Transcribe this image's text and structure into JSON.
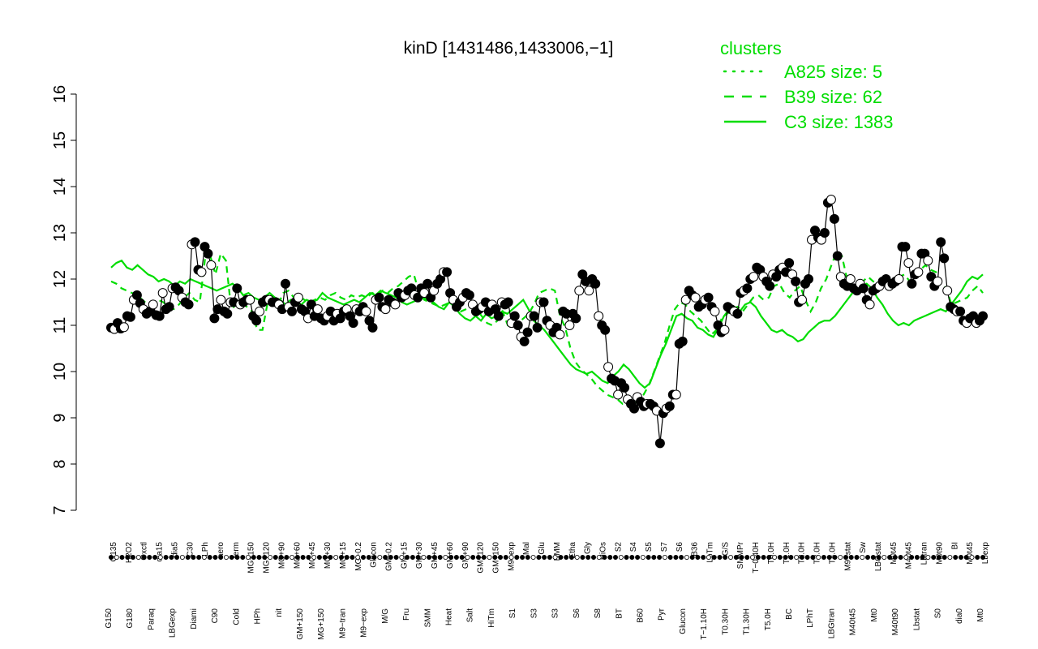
{
  "chart_data": {
    "type": "line",
    "title": "kinD [1431486,1433006,−1]",
    "xlabel": "",
    "ylabel": "",
    "ylim": [
      7,
      16
    ],
    "yticks": [
      7,
      8,
      9,
      10,
      11,
      12,
      13,
      14,
      15,
      16
    ],
    "grid": false,
    "legend_placement": "top-right",
    "legend": {
      "title": "clusters",
      "color": "#00dd00",
      "entries": [
        {
          "label": "A825 size: 5",
          "style": "dotted"
        },
        {
          "label": "B39 size: 62",
          "style": "dashed"
        },
        {
          "label": "C3 size: 1383",
          "style": "solid"
        }
      ]
    },
    "x_labels_top": [
      "G135",
      "H2O2",
      "Oxctl",
      "dia15",
      "dia5",
      "C30",
      "LPh",
      "aero",
      "ferm",
      "MG+150",
      "MG+120",
      "MG+90",
      "MG+60",
      "MG+45",
      "MG+30",
      "MG+15",
      "MG−0.2",
      "Glucon",
      "GM−0.2",
      "GM+15",
      "GM+30",
      "GM+45",
      "GM+60",
      "GM+90",
      "GM+120",
      "GM+150",
      "M9−exp",
      "Mal",
      "Glu",
      "BMM",
      "Etha",
      "Gly",
      "HiOs",
      "S2",
      "S4",
      "S5",
      "S7",
      "S6",
      "B36",
      "LoTm",
      "G/S",
      "SMMPr",
      "T−0.40H",
      "T0.0H",
      "T1.0H",
      "T2.0H",
      "T3.0H",
      "T4.0H",
      "M9−stat",
      "Sw",
      "LBGstat",
      "M0t45",
      "M40t45",
      "Lbtran",
      "M0t90",
      "BI",
      "M0t45",
      "Lbexp"
    ],
    "x_labels_bottom": [
      "G150",
      "G180",
      "Paraq",
      "LBGexp",
      "Diami",
      "C90",
      "Cold",
      "HPh",
      "nit",
      "GM+150",
      "MG+150",
      "M9−tran",
      "M9−exp",
      "M/G",
      "Fru",
      "SMM",
      "Heat",
      "Salt",
      "HiTm",
      "S1",
      "S3",
      "S3",
      "S6",
      "S8",
      "BT",
      "B60",
      "Pyr",
      "Glucon",
      "T−1.10H",
      "T0.30H",
      "T1.30H",
      "T5.0H",
      "BC",
      "LPhT",
      "LBGtran",
      "M40t45",
      "Mt0",
      "M40t90",
      "Lbstat",
      "S0",
      "dia0",
      "Mt0"
    ],
    "series": [
      {
        "name": "",
        "style": "solid",
        "color": "#000000",
        "values": [
          10.95,
          10.92,
          11.05,
          10.93,
          10.96,
          11.2,
          11.18,
          11.55,
          11.65,
          11.48,
          11.35,
          11.25,
          11.3,
          11.45,
          11.22,
          11.2,
          11.7,
          11.35,
          11.4,
          11.8,
          11.82,
          11.75,
          11.6,
          11.5,
          11.45,
          12.75,
          12.8,
          12.2,
          12.15,
          12.7,
          12.55,
          12.3,
          11.15,
          11.35,
          11.55,
          11.3,
          11.25,
          11.5,
          11.5,
          11.8,
          11.45,
          11.5,
          11.55,
          11.55,
          11.2,
          11.1,
          11.3,
          11.5,
          11.55,
          11.55,
          11.5,
          11.5,
          11.45,
          11.35,
          11.9,
          11.4,
          11.3,
          11.5,
          11.6,
          11.35,
          11.3,
          11.15,
          11.45,
          11.2,
          11.35,
          11.15,
          11.1,
          11.2,
          11.3,
          11.1,
          11.25,
          11.15,
          11.3,
          11.35,
          11.2,
          11.05,
          11.35,
          11.3,
          11.4,
          11.3,
          11.1,
          10.95,
          11.55,
          11.6,
          11.4,
          11.35,
          11.55,
          11.5,
          11.45,
          11.7,
          11.6,
          11.65,
          11.75,
          11.8,
          11.65,
          11.6,
          11.8,
          11.7,
          11.9,
          11.6,
          11.75,
          11.9,
          12.0,
          12.15,
          12.15,
          11.7,
          11.55,
          11.4,
          11.5,
          11.6,
          11.7,
          11.65,
          11.45,
          11.3,
          11.35,
          11.4,
          11.5,
          11.3,
          11.45,
          11.35,
          11.2,
          11.5,
          11.45,
          11.5,
          11.05,
          11.2,
          11.0,
          10.75,
          10.65,
          10.85,
          11.2,
          11.2,
          10.95,
          11.5,
          11.5,
          11.1,
          11.0,
          10.85,
          10.95,
          10.8,
          11.3,
          11.25,
          11.0,
          11.25,
          11.15,
          11.75,
          12.1,
          11.95,
          11.75,
          12.0,
          11.9,
          11.2,
          11.0,
          10.9,
          10.1,
          9.85,
          9.8,
          9.5,
          9.75,
          9.65,
          9.4,
          9.3,
          9.2,
          9.45,
          9.35,
          9.25,
          9.3,
          9.3,
          9.25,
          9.15,
          8.45,
          9.1,
          9.2,
          9.25,
          9.5,
          9.5,
          10.6,
          10.65,
          11.55,
          11.75,
          11.65,
          11.6,
          11.4,
          11.45,
          11.55,
          11.6,
          11.4,
          11.3,
          11.0,
          10.85,
          10.9,
          11.4,
          11.35,
          11.3,
          11.25,
          11.7,
          11.75,
          11.8,
          12.0,
          12.05,
          12.25,
          12.2,
          12.05,
          11.95,
          11.85,
          12.1,
          12.05,
          12.2,
          12.25,
          12.15,
          12.35,
          12.1,
          11.95,
          11.5,
          11.55,
          11.9,
          12.0,
          12.85,
          13.05,
          12.9,
          12.85,
          13.0,
          13.65,
          13.72,
          13.3,
          12.5,
          12.05,
          11.9,
          11.85,
          12.0,
          11.8,
          11.75,
          11.9,
          11.8,
          11.55,
          11.45,
          11.75,
          11.8,
          11.85,
          11.95,
          12.0,
          11.85,
          11.9,
          11.95,
          12.0,
          12.7,
          12.7,
          12.35,
          11.9,
          12.1,
          12.15,
          12.55,
          12.55,
          12.4,
          12.05,
          11.85,
          11.95,
          12.8,
          12.45,
          11.75,
          11.4,
          11.35,
          11.3,
          11.3,
          11.1,
          11.05,
          11.15,
          11.2,
          11.05,
          11.1,
          11.2
        ]
      },
      {
        "name": "",
        "style": "dashed",
        "color": "#00dd00",
        "values": [
          11.95,
          11.9,
          11.8,
          11.75,
          11.7,
          11.65,
          11.55,
          11.45,
          11.5,
          11.55,
          11.5,
          11.4,
          11.35,
          11.45,
          11.6,
          11.7,
          11.55,
          11.5,
          12.45,
          12.5,
          12.1,
          12.55,
          12.4,
          11.35,
          11.45,
          11.5,
          11.4,
          11.3,
          10.9,
          10.9,
          11.5,
          11.55,
          11.45,
          11.7,
          11.75,
          11.6,
          11.65,
          11.55,
          11.5,
          11.55,
          11.6,
          11.55,
          11.65,
          11.7,
          11.6,
          11.55,
          11.65,
          11.6,
          11.65,
          11.6,
          11.7,
          11.65,
          11.75,
          11.7,
          11.8,
          11.85,
          11.95,
          12.05,
          12.1,
          11.7,
          11.55,
          11.5,
          11.45,
          11.4,
          11.45,
          11.5,
          11.4,
          11.3,
          11.35,
          11.4,
          11.35,
          11.2,
          11.05,
          11.0,
          11.1,
          11.3,
          11.0,
          10.95,
          11.05,
          11.15,
          11.25,
          11.45,
          11.7,
          11.75,
          11.8,
          11.75,
          11.2,
          10.95,
          10.5,
          10.2,
          10.05,
          9.95,
          9.85,
          9.7,
          9.6,
          9.5,
          9.45,
          9.4,
          9.3,
          9.35,
          9.25,
          9.4,
          9.5,
          9.7,
          10.0,
          10.3,
          10.6,
          11.0,
          11.35,
          11.5,
          11.45,
          11.3,
          11.2,
          11.1,
          10.95,
          10.8,
          10.9,
          11.15,
          11.25,
          11.35,
          11.4,
          11.3,
          11.45,
          11.6,
          11.65,
          11.55,
          11.6,
          11.85,
          11.9,
          11.7,
          11.6,
          11.75,
          11.85,
          11.55,
          11.3,
          11.5,
          11.8,
          12.0,
          12.3,
          12.6,
          12.5,
          12.0,
          11.7,
          11.85,
          11.95,
          12.05,
          11.95,
          11.9,
          11.85,
          11.95,
          12.0,
          12.05,
          12.1,
          11.95,
          12.05,
          12.2,
          12.3,
          12.2,
          12.15,
          11.9,
          11.8,
          11.45,
          11.5,
          11.55,
          11.6,
          11.75,
          11.85,
          11.7
        ]
      },
      {
        "name": "",
        "style": "solid",
        "color": "#00dd00",
        "values": [
          12.25,
          12.35,
          12.4,
          12.25,
          12.2,
          12.3,
          12.2,
          12.1,
          12.05,
          11.95,
          12.0,
          11.95,
          11.85,
          11.95,
          11.9,
          12.0,
          11.95,
          11.9,
          11.85,
          11.8,
          11.75,
          11.8,
          11.85,
          11.9,
          11.8,
          11.65,
          11.7,
          11.6,
          11.55,
          11.6,
          11.7,
          11.6,
          11.55,
          11.45,
          11.55,
          11.5,
          11.45,
          11.55,
          11.5,
          11.55,
          11.7,
          11.6,
          11.55,
          11.5,
          11.45,
          11.5,
          11.55,
          11.5,
          11.6,
          11.7,
          11.65,
          11.75,
          11.7,
          11.65,
          11.6,
          11.5,
          11.45,
          11.5,
          11.55,
          11.6,
          11.55,
          11.5,
          11.4,
          11.35,
          11.5,
          11.4,
          11.25,
          11.15,
          11.1,
          11.2,
          11.1,
          11.25,
          11.15,
          11.2,
          11.3,
          11.25,
          11.35,
          11.45,
          11.55,
          11.35,
          11.1,
          11.0,
          10.9,
          10.75,
          10.6,
          10.45,
          10.3,
          10.15,
          10.05,
          10.0,
          9.95,
          10.0,
          9.9,
          9.8,
          9.75,
          9.9,
          10.0,
          10.15,
          10.05,
          9.9,
          9.75,
          9.65,
          9.75,
          10.05,
          10.35,
          10.6,
          10.9,
          11.2,
          11.25,
          11.15,
          11.1,
          10.95,
          10.9,
          10.8,
          10.75,
          10.95,
          11.2,
          11.35,
          11.4,
          11.3,
          11.45,
          11.5,
          11.4,
          11.2,
          11.05,
          10.9,
          10.85,
          10.9,
          10.8,
          10.75,
          10.65,
          10.7,
          10.85,
          10.95,
          11.05,
          11.1,
          11.1,
          11.2,
          11.35,
          11.5,
          11.65,
          11.8,
          11.85,
          11.9,
          11.8,
          11.6,
          11.45,
          11.25,
          11.1,
          11.0,
          11.05,
          11.0,
          11.1,
          11.15,
          11.2,
          11.25,
          11.3,
          11.35,
          11.3,
          11.45,
          11.6,
          11.75,
          11.95,
          12.05,
          12.0,
          12.1
        ]
      }
    ]
  }
}
